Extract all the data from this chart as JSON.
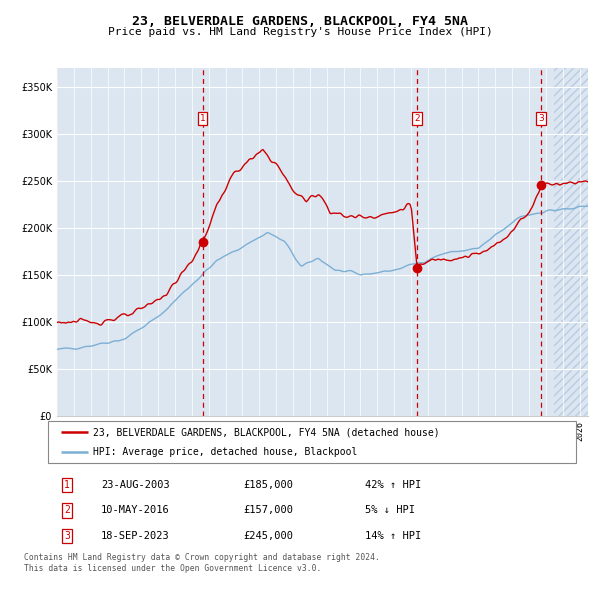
{
  "title": "23, BELVERDALE GARDENS, BLACKPOOL, FY4 5NA",
  "subtitle": "Price paid vs. HM Land Registry's House Price Index (HPI)",
  "ylim": [
    0,
    370000
  ],
  "yticks": [
    0,
    50000,
    100000,
    150000,
    200000,
    250000,
    300000,
    350000
  ],
  "plot_bg_color": "#dce6f1",
  "red_line_color": "#cc0000",
  "blue_line_color": "#7bafd4",
  "purchase_markers": [
    {
      "date_float": 2003.65,
      "price": 185000,
      "label": "1"
    },
    {
      "date_float": 2016.36,
      "price": 157000,
      "label": "2"
    },
    {
      "date_float": 2023.72,
      "price": 245000,
      "label": "3"
    }
  ],
  "legend_entries": [
    "23, BELVERDALE GARDENS, BLACKPOOL, FY4 5NA (detached house)",
    "HPI: Average price, detached house, Blackpool"
  ],
  "table_rows": [
    {
      "num": "1",
      "date": "23-AUG-2003",
      "price": "£185,000",
      "hpi": "42% ↑ HPI"
    },
    {
      "num": "2",
      "date": "10-MAY-2016",
      "price": "£157,000",
      "hpi": "5% ↓ HPI"
    },
    {
      "num": "3",
      "date": "18-SEP-2023",
      "price": "£245,000",
      "hpi": "14% ↑ HPI"
    }
  ],
  "footer": "Contains HM Land Registry data © Crown copyright and database right 2024.\nThis data is licensed under the Open Government Licence v3.0.",
  "xmin": 1995.0,
  "xmax": 2026.5,
  "future_start": 2024.5,
  "hpi_anchors_t": [
    1995.0,
    1997.0,
    1999.0,
    2001.0,
    2003.0,
    2004.5,
    2007.5,
    2008.5,
    2009.5,
    2010.5,
    2011.5,
    2013.0,
    2015.0,
    2016.5,
    2018.0,
    2020.0,
    2021.5,
    2022.5,
    2024.0,
    2025.5,
    2026.5
  ],
  "hpi_anchors_v": [
    70000,
    75000,
    82000,
    105000,
    140000,
    165000,
    195000,
    185000,
    158000,
    168000,
    155000,
    150000,
    155000,
    163000,
    173000,
    178000,
    198000,
    212000,
    218000,
    220000,
    222000
  ],
  "red_anchors_t": [
    1995.0,
    1997.5,
    1999.5,
    2001.5,
    2003.0,
    2003.65,
    2004.5,
    2005.5,
    2006.5,
    2007.2,
    2008.0,
    2009.0,
    2009.8,
    2010.5,
    2011.2,
    2012.0,
    2013.5,
    2015.0,
    2016.0,
    2016.36,
    2016.8,
    2017.5,
    2018.5,
    2019.5,
    2020.5,
    2021.5,
    2022.5,
    2023.0,
    2023.72,
    2024.2,
    2025.0,
    2026.5
  ],
  "red_anchors_v": [
    100000,
    100000,
    108000,
    130000,
    165000,
    185000,
    225000,
    258000,
    272000,
    282000,
    268000,
    240000,
    228000,
    238000,
    218000,
    212000,
    212000,
    216000,
    226000,
    157000,
    162000,
    167000,
    168000,
    170000,
    175000,
    188000,
    208000,
    215000,
    245000,
    248000,
    247000,
    250000
  ]
}
